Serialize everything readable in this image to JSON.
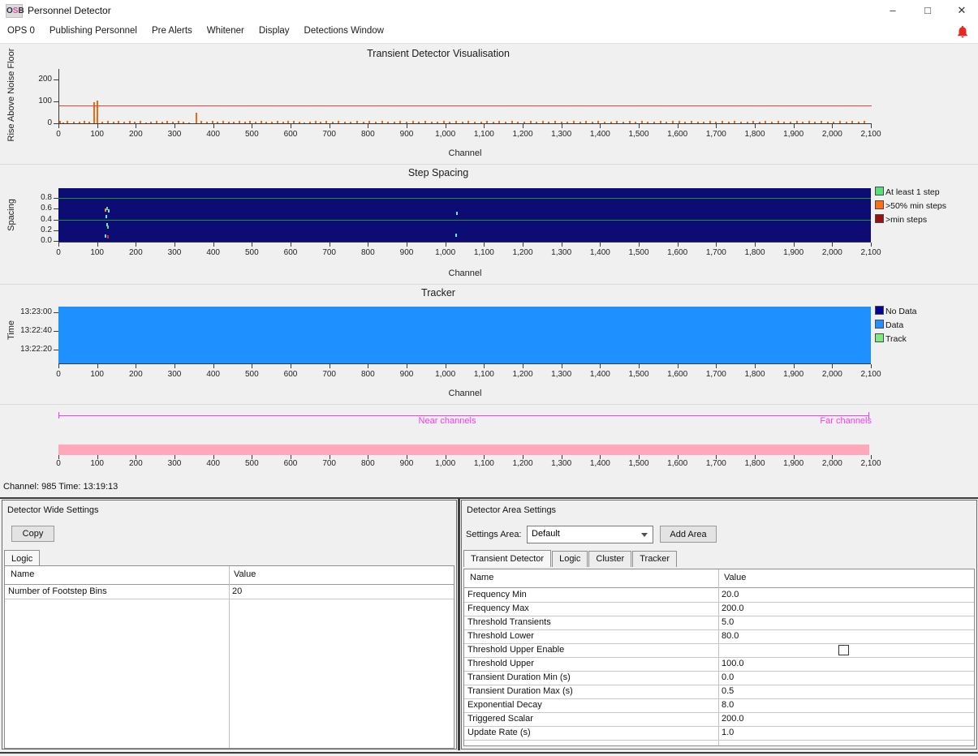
{
  "window": {
    "title": "Personnel Detector",
    "icon": {
      "o": "O",
      "s": "S",
      "b": "B"
    },
    "controls": {
      "minimize": "–",
      "maximize": "□",
      "close": "✕"
    }
  },
  "menu": {
    "items": [
      "OPS 0",
      "Publishing Personnel",
      "Pre Alerts",
      "Whitener",
      "Display",
      "Detections Window"
    ],
    "alert_icon": "bell-icon",
    "alert_color": "#e8281e"
  },
  "channel_axis": {
    "label": "Channel",
    "ticks": [
      0,
      100,
      200,
      300,
      400,
      500,
      600,
      700,
      800,
      900,
      1000,
      1100,
      1200,
      1300,
      1400,
      1500,
      1600,
      1700,
      1800,
      1900,
      2000,
      2100
    ]
  },
  "chart_data": [
    {
      "id": "transient",
      "type": "bar",
      "title": "Transient Detector Visualisation",
      "xlabel": "Channel",
      "ylabel": "Rise Above Noise Floor",
      "xlim": [
        0,
        2100
      ],
      "ylim": [
        0,
        260
      ],
      "yticks": [
        0,
        100,
        200
      ],
      "grid": false,
      "threshold_line": {
        "y": 80,
        "color": "#ef4135"
      },
      "bar_color": "#f06812",
      "bars": [
        [
          3,
          10
        ],
        [
          10,
          4
        ],
        [
          22,
          12
        ],
        [
          38,
          6
        ],
        [
          52,
          9
        ],
        [
          65,
          13
        ],
        [
          78,
          7
        ],
        [
          90,
          96
        ],
        [
          99,
          104
        ],
        [
          112,
          9
        ],
        [
          126,
          12
        ],
        [
          140,
          8
        ],
        [
          154,
          13
        ],
        [
          168,
          6
        ],
        [
          182,
          10
        ],
        [
          196,
          8
        ],
        [
          210,
          12
        ],
        [
          224,
          5
        ],
        [
          238,
          9
        ],
        [
          252,
          12
        ],
        [
          266,
          7
        ],
        [
          280,
          10
        ],
        [
          294,
          6
        ],
        [
          308,
          11
        ],
        [
          322,
          8
        ],
        [
          336,
          5
        ],
        [
          355,
          50
        ],
        [
          368,
          12
        ],
        [
          382,
          7
        ],
        [
          396,
          10
        ],
        [
          410,
          8
        ],
        [
          424,
          11
        ],
        [
          438,
          6
        ],
        [
          452,
          9
        ],
        [
          466,
          12
        ],
        [
          480,
          7
        ],
        [
          494,
          10
        ],
        [
          508,
          8
        ],
        [
          522,
          11
        ],
        [
          536,
          6
        ],
        [
          550,
          9
        ],
        [
          564,
          12
        ],
        [
          578,
          7
        ],
        [
          592,
          10
        ],
        [
          606,
          13
        ],
        [
          620,
          8
        ],
        [
          634,
          5
        ],
        [
          648,
          9
        ],
        [
          662,
          12
        ],
        [
          676,
          7
        ],
        [
          690,
          10
        ],
        [
          706,
          8
        ],
        [
          722,
          11
        ],
        [
          738,
          6
        ],
        [
          754,
          9
        ],
        [
          770,
          12
        ],
        [
          786,
          7
        ],
        [
          802,
          10
        ],
        [
          818,
          8
        ],
        [
          834,
          11
        ],
        [
          850,
          6
        ],
        [
          866,
          9
        ],
        [
          882,
          12
        ],
        [
          898,
          7
        ],
        [
          914,
          10
        ],
        [
          930,
          8
        ],
        [
          946,
          11
        ],
        [
          962,
          6
        ],
        [
          978,
          9
        ],
        [
          994,
          12
        ],
        [
          1010,
          7
        ],
        [
          1026,
          10
        ],
        [
          1042,
          8
        ],
        [
          1058,
          11
        ],
        [
          1074,
          6
        ],
        [
          1090,
          9
        ],
        [
          1106,
          12
        ],
        [
          1122,
          7
        ],
        [
          1138,
          10
        ],
        [
          1154,
          8
        ],
        [
          1170,
          11
        ],
        [
          1186,
          6
        ],
        [
          1202,
          9
        ],
        [
          1218,
          12
        ],
        [
          1234,
          7
        ],
        [
          1250,
          10
        ],
        [
          1266,
          8
        ],
        [
          1282,
          11
        ],
        [
          1298,
          6
        ],
        [
          1314,
          9
        ],
        [
          1330,
          12
        ],
        [
          1346,
          7
        ],
        [
          1362,
          10
        ],
        [
          1378,
          8
        ],
        [
          1394,
          11
        ],
        [
          1410,
          6
        ],
        [
          1426,
          9
        ],
        [
          1442,
          12
        ],
        [
          1458,
          7
        ],
        [
          1474,
          10
        ],
        [
          1490,
          8
        ],
        [
          1506,
          11
        ],
        [
          1522,
          6
        ],
        [
          1538,
          9
        ],
        [
          1554,
          12
        ],
        [
          1570,
          7
        ],
        [
          1586,
          10
        ],
        [
          1602,
          13
        ],
        [
          1618,
          8
        ],
        [
          1634,
          11
        ],
        [
          1650,
          6
        ],
        [
          1666,
          9
        ],
        [
          1682,
          12
        ],
        [
          1698,
          7
        ],
        [
          1714,
          10
        ],
        [
          1730,
          8
        ],
        [
          1746,
          11
        ],
        [
          1762,
          6
        ],
        [
          1778,
          9
        ],
        [
          1794,
          12
        ],
        [
          1810,
          7
        ],
        [
          1826,
          10
        ],
        [
          1842,
          8
        ],
        [
          1858,
          11
        ],
        [
          1874,
          6
        ],
        [
          1890,
          9
        ],
        [
          1906,
          12
        ],
        [
          1922,
          7
        ],
        [
          1938,
          10
        ],
        [
          1954,
          8
        ],
        [
          1970,
          11
        ],
        [
          1986,
          6
        ],
        [
          2002,
          9
        ],
        [
          2018,
          12
        ],
        [
          2034,
          7
        ],
        [
          2050,
          10
        ],
        [
          2066,
          8
        ],
        [
          2082,
          11
        ]
      ]
    },
    {
      "id": "step-spacing",
      "type": "scatter",
      "title": "Step Spacing",
      "xlabel": "Channel",
      "ylabel": "Spacing",
      "xlim": [
        0,
        2100
      ],
      "ylim": [
        0,
        0.97
      ],
      "yticks": [
        0.0,
        0.2,
        0.4,
        0.6,
        0.8
      ],
      "plot_bg": "#0c0c74",
      "hlines": [
        {
          "y": 0.8,
          "color": "#12962e"
        },
        {
          "y": 0.4,
          "color": "#12962e"
        }
      ],
      "legend": [
        {
          "label": "At least 1 step",
          "color": "#57e07a"
        },
        {
          "label": ">50% min steps",
          "color": "#ff6e14"
        },
        {
          "label": ">min steps",
          "color": "#991111"
        }
      ],
      "points": [
        [
          120,
          0.58,
          "#ff8c1a"
        ],
        [
          124,
          0.6,
          "#57e07a"
        ],
        [
          127,
          0.56,
          "#6fe3e8"
        ],
        [
          122,
          0.46,
          "#6fe3e8"
        ],
        [
          124,
          0.31,
          "#6fe3e8"
        ],
        [
          125,
          0.26,
          "#57e07a"
        ],
        [
          120,
          0.09,
          "#6fe3e8"
        ],
        [
          125,
          0.07,
          "#e03222"
        ],
        [
          1028,
          0.52,
          "#6fe3e8"
        ],
        [
          1026,
          0.1,
          "#6fe3e8"
        ]
      ]
    },
    {
      "id": "tracker",
      "type": "heatmap",
      "title": "Tracker",
      "xlabel": "Channel",
      "ylabel": "Time",
      "xlim": [
        0,
        2100
      ],
      "yticks": [
        "13:23:00",
        "13:22:40",
        "13:22:20"
      ],
      "fill_color": "#1e90ff",
      "legend": [
        {
          "label": "No Data",
          "color": "#050593"
        },
        {
          "label": "Data",
          "color": "#1e90ff"
        },
        {
          "label": "Track",
          "color": "#7fe87f"
        }
      ]
    },
    {
      "id": "channel-strip",
      "type": "strip",
      "near_label": "Near channels",
      "far_label": "Far channels",
      "line_color": "#f23df2",
      "bar_color": "#ffa8bc",
      "xlim": [
        0,
        2100
      ]
    }
  ],
  "status": {
    "text": "Channel: 985 Time: 13:19:13"
  },
  "left_panel": {
    "title": "Detector Wide Settings",
    "copy_button": "Copy",
    "tabs": [
      {
        "label": "Logic",
        "active": true
      }
    ],
    "table": {
      "headers": [
        "Name",
        "Value"
      ],
      "rows": [
        {
          "name": "Number of Footstep Bins",
          "value": "20"
        }
      ]
    }
  },
  "right_panel": {
    "title": "Detector Area Settings",
    "settings_area_label": "Settings Area:",
    "settings_area_value": "Default",
    "add_area_button": "Add Area",
    "tabs": [
      {
        "label": "Transient Detector",
        "active": true
      },
      {
        "label": "Logic",
        "active": false
      },
      {
        "label": "Cluster",
        "active": false
      },
      {
        "label": "Tracker",
        "active": false
      }
    ],
    "table": {
      "headers": [
        "Name",
        "Value"
      ],
      "rows": [
        {
          "name": "Frequency Min",
          "value": "20.0"
        },
        {
          "name": "Frequency Max",
          "value": "200.0"
        },
        {
          "name": "Threshold Transients",
          "value": "5.0"
        },
        {
          "name": "Threshold Lower",
          "value": "80.0"
        },
        {
          "name": "Threshold Upper Enable",
          "value": "",
          "checkbox": true,
          "checked": false
        },
        {
          "name": "Threshold Upper",
          "value": "100.0"
        },
        {
          "name": "Transient Duration Min (s)",
          "value": "0.0"
        },
        {
          "name": "Transient Duration Max (s)",
          "value": "0.5"
        },
        {
          "name": "Exponential Decay",
          "value": "8.0"
        },
        {
          "name": "Triggered Scalar",
          "value": "200.0"
        },
        {
          "name": "Update Rate (s)",
          "value": "1.0"
        }
      ]
    }
  }
}
